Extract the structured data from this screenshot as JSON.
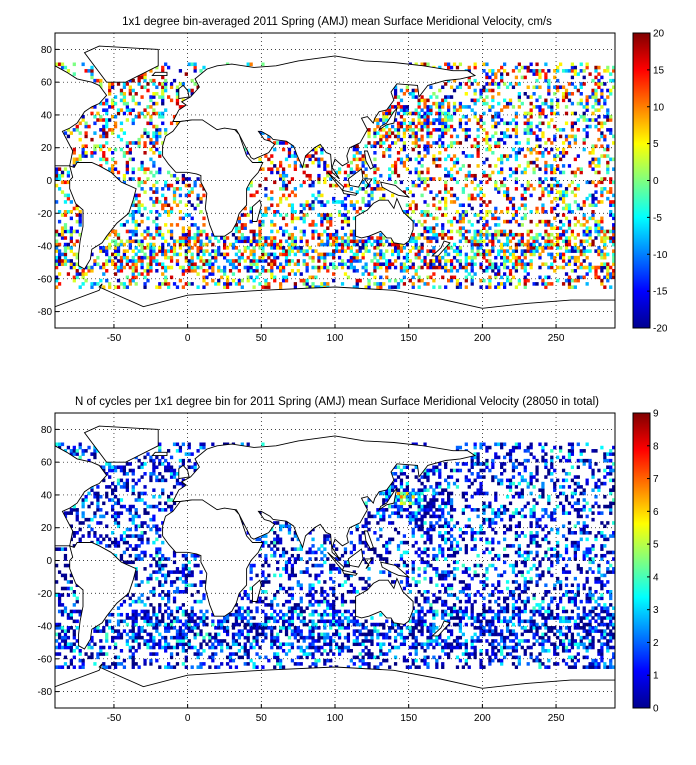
{
  "chart_data": [
    {
      "type": "heatmap",
      "title": "1x1 degree bin-averaged 2011 Spring (AMJ) mean Surface Meridional Velocity, cm/s",
      "xlabel": "",
      "ylabel": "",
      "xlim": [
        -90,
        290
      ],
      "ylim": [
        -90,
        90
      ],
      "xticks": [
        "-50",
        "0",
        "50",
        "100",
        "150",
        "200",
        "250"
      ],
      "yticks": [
        "80",
        "60",
        "40",
        "20",
        "0",
        "-20",
        "-40",
        "-60",
        "-80"
      ],
      "colorbar": {
        "range": [
          -20,
          20
        ],
        "ticks": [
          "20",
          "15",
          "10",
          "5",
          "0",
          "-5",
          "-10",
          "-15",
          "-20"
        ],
        "colormap": "jet"
      },
      "grid": true
    },
    {
      "type": "heatmap",
      "title": "N of cycles per 1x1 degree bin for 2011 Spring (AMJ) mean Surface Meridional Velocity (28050 in total)",
      "xlabel": "",
      "ylabel": "",
      "xlim": [
        -90,
        290
      ],
      "ylim": [
        -90,
        90
      ],
      "xticks": [
        "-50",
        "0",
        "50",
        "100",
        "150",
        "200",
        "250"
      ],
      "yticks": [
        "80",
        "60",
        "40",
        "20",
        "0",
        "-20",
        "-40",
        "-60",
        "-80"
      ],
      "colorbar": {
        "range": [
          0,
          9
        ],
        "ticks": [
          "9",
          "8",
          "7",
          "6",
          "5",
          "4",
          "3",
          "2",
          "1",
          "0"
        ],
        "colormap": "jet"
      },
      "grid": true
    }
  ]
}
